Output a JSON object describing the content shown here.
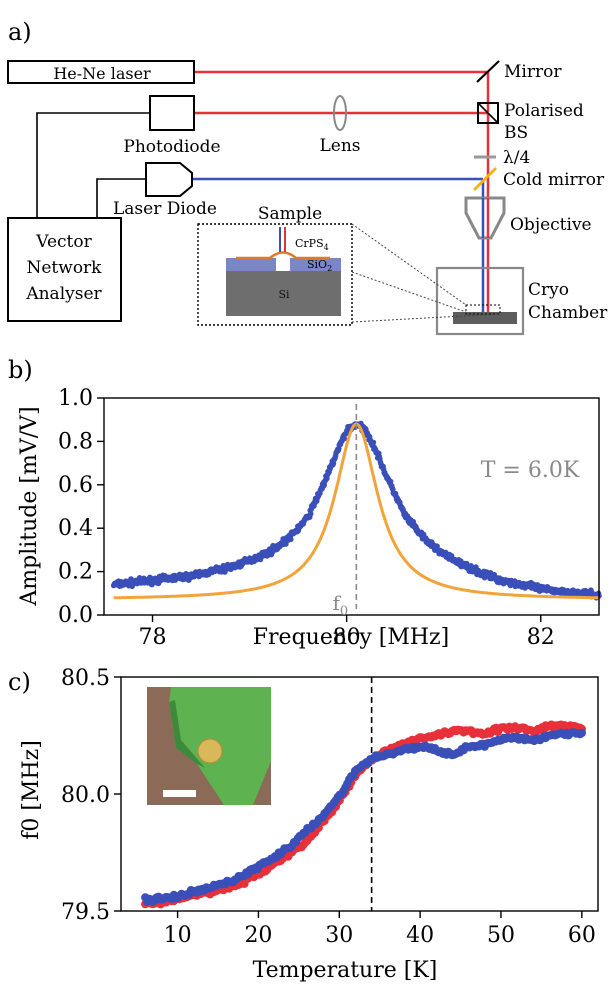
{
  "panel_a": {
    "label": "a)",
    "components": {
      "laser": "He-Ne laser",
      "photodiode": "Photodiode",
      "laser_diode": "Laser Diode",
      "vna": [
        "Vector",
        "Network",
        "Analyser"
      ],
      "lens": "Lens",
      "mirror": "Mirror",
      "polarised_bs": [
        "Polarised",
        "BS"
      ],
      "quarter_wave": "λ/4",
      "cold_mirror": "Cold mirror",
      "objective": "Objective",
      "cryo": [
        "Cryo",
        "Chamber"
      ]
    },
    "inset": {
      "sample": "Sample",
      "layer_flake": "CrPS",
      "layer_flake_sub": "4",
      "layer_oxide": "SiO",
      "layer_oxide_sub": "2",
      "layer_substrate": "Si"
    },
    "colors": {
      "red_beam": "#e8303a",
      "blue_beam": "#3a4fb8",
      "cold_mirror": "#f2b01e",
      "sio2": "#7b86c9",
      "si": "#6e6e6e",
      "flake": "#e07a2a"
    }
  },
  "panel_b": {
    "label": "b)",
    "annotation": "T = 6.0K",
    "f0_label": "f",
    "f0_sub": "0",
    "colors": {
      "data": "#3a4fb8",
      "fit": "#f2a33a",
      "marker": "#8a8a8a"
    }
  },
  "panel_c": {
    "label": "c)",
    "colors": {
      "series_red": "#e8303a",
      "series_blue": "#3a4fb8"
    }
  },
  "chart_data": [
    {
      "type": "scatter",
      "xlabel": "Frequency [MHz]",
      "ylabel": "Amplitude [mV/V]",
      "xlim": [
        77.5,
        82.6
      ],
      "ylim": [
        0.0,
        1.0
      ],
      "xticks": [
        78,
        80,
        82
      ],
      "yticks": [
        0.0,
        0.2,
        0.4,
        0.6,
        0.8,
        1.0
      ],
      "ytick_labels": [
        "0.0",
        "0.2",
        "0.4",
        "0.6",
        "0.8",
        "1.0"
      ],
      "resonance": {
        "f0": 80.1,
        "peak": 0.88,
        "linewidth": 0.54,
        "baseline": 0.07
      },
      "marker_x": 80.1,
      "series": [
        {
          "x": [
            77.6,
            77.8,
            78.0,
            78.2,
            78.4,
            78.6,
            78.8,
            79.0,
            79.2,
            79.4,
            79.6,
            79.8,
            79.9,
            80.0,
            80.1,
            80.2,
            80.3,
            80.4,
            80.6,
            80.8,
            81.0,
            81.2,
            81.4,
            81.6,
            81.8,
            82.0,
            82.2,
            82.4,
            82.6
          ],
          "y": [
            0.14,
            0.15,
            0.16,
            0.17,
            0.18,
            0.2,
            0.22,
            0.25,
            0.29,
            0.35,
            0.45,
            0.64,
            0.75,
            0.85,
            0.88,
            0.85,
            0.76,
            0.65,
            0.46,
            0.35,
            0.28,
            0.23,
            0.19,
            0.16,
            0.14,
            0.12,
            0.11,
            0.1,
            0.09
          ]
        }
      ]
    },
    {
      "type": "scatter",
      "xlabel": "Temperature [K]",
      "ylabel": "f0 [MHz]",
      "xlim": [
        3,
        62
      ],
      "ylim": [
        79.5,
        80.5
      ],
      "xticks": [
        10,
        20,
        30,
        40,
        50,
        60
      ],
      "yticks": [
        79.5,
        80.0,
        80.5
      ],
      "ytick_labels": [
        "79.5",
        "80.0",
        "80.5"
      ],
      "marker_x": 34,
      "series": [
        {
          "x": [
            6,
            8,
            10,
            12,
            14,
            16,
            18,
            20,
            22,
            24,
            26,
            28,
            30,
            32,
            34,
            36,
            38,
            40,
            42,
            44,
            46,
            48,
            50,
            52,
            54,
            56,
            58,
            60
          ],
          "y": [
            79.53,
            79.54,
            79.55,
            79.57,
            79.58,
            79.6,
            79.62,
            79.66,
            79.7,
            79.75,
            79.8,
            79.88,
            79.97,
            80.08,
            80.15,
            80.19,
            80.21,
            80.24,
            80.25,
            80.27,
            80.27,
            80.26,
            80.28,
            80.28,
            80.27,
            80.29,
            80.29,
            80.28
          ]
        },
        {
          "x": [
            6,
            8,
            10,
            12,
            14,
            16,
            18,
            20,
            22,
            24,
            26,
            28,
            30,
            32,
            34,
            36,
            38,
            40,
            42,
            44,
            46,
            48,
            50,
            52,
            54,
            56,
            58,
            60
          ],
          "y": [
            79.55,
            79.55,
            79.56,
            79.58,
            79.6,
            79.62,
            79.65,
            79.69,
            79.73,
            79.78,
            79.84,
            79.91,
            79.99,
            80.1,
            80.15,
            80.17,
            80.19,
            80.2,
            80.19,
            80.17,
            80.2,
            80.21,
            80.23,
            80.24,
            80.23,
            80.25,
            80.26,
            80.26
          ]
        }
      ]
    }
  ]
}
